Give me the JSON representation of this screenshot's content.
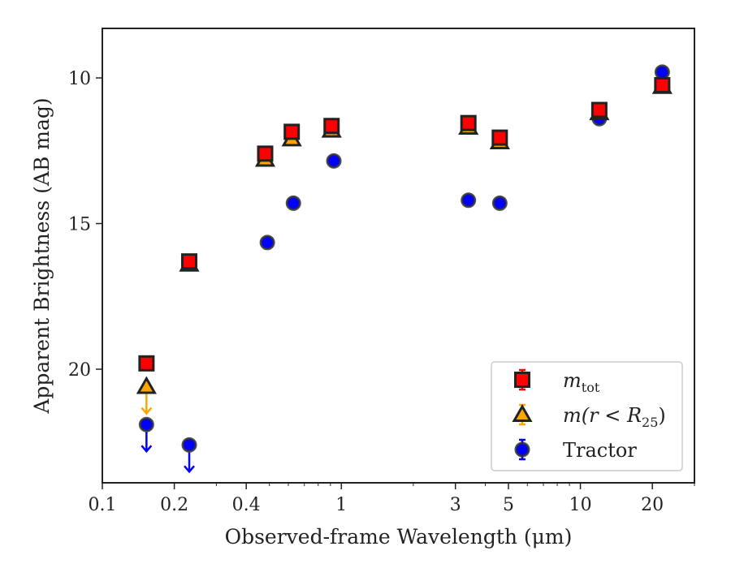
{
  "chart_data": {
    "type": "scatter",
    "xlabel": "Observed-frame Wavelength (μm)",
    "ylabel": "Apparent Brightness (AB mag)",
    "xscale": "log",
    "xlim": [
      0.1,
      30
    ],
    "ylim": [
      23.9,
      8.3
    ],
    "y_inverted": true,
    "x_ticks": [
      0.1,
      0.2,
      0.4,
      1,
      3,
      5,
      10,
      20
    ],
    "x_tick_labels": [
      "0.1",
      "0.2",
      "0.4",
      "1",
      "3",
      "5",
      "10",
      "20"
    ],
    "y_ticks": [
      10,
      15,
      20
    ],
    "y_tick_labels": [
      "10",
      "15",
      "20"
    ],
    "grid": false,
    "legend_position": "lower-right",
    "series": [
      {
        "name": "m_tot",
        "legend_label": {
          "base": "m",
          "sub": "tot"
        },
        "marker": "square",
        "color": "#ff0000",
        "points": [
          {
            "x": 0.153,
            "y": 19.8
          },
          {
            "x": 0.231,
            "y": 16.3
          },
          {
            "x": 0.48,
            "y": 12.6
          },
          {
            "x": 0.62,
            "y": 11.85
          },
          {
            "x": 0.91,
            "y": 11.65
          },
          {
            "x": 3.4,
            "y": 11.55
          },
          {
            "x": 4.6,
            "y": 12.05
          },
          {
            "x": 12.0,
            "y": 11.1
          },
          {
            "x": 22.0,
            "y": 10.25
          }
        ]
      },
      {
        "name": "m(r < R_25)",
        "legend_label": {
          "base": "m(r < R",
          "sub": "25",
          "tail": ")"
        },
        "marker": "triangle",
        "color": "#ffa500",
        "points": [
          {
            "x": 0.153,
            "y": 20.6,
            "upper_limit": true
          },
          {
            "x": 0.231,
            "y": 16.4
          },
          {
            "x": 0.48,
            "y": 12.8
          },
          {
            "x": 0.62,
            "y": 12.1
          },
          {
            "x": 0.91,
            "y": 11.8
          },
          {
            "x": 3.4,
            "y": 11.7
          },
          {
            "x": 4.6,
            "y": 12.2
          },
          {
            "x": 12.0,
            "y": 11.2
          },
          {
            "x": 22.0,
            "y": 10.3
          }
        ]
      },
      {
        "name": "Tractor",
        "legend_label": {
          "base": "Tractor"
        },
        "marker": "circle",
        "color": "#0000ff",
        "points": [
          {
            "x": 0.153,
            "y": 21.9,
            "upper_limit": true
          },
          {
            "x": 0.231,
            "y": 22.6,
            "upper_limit": true
          },
          {
            "x": 0.49,
            "y": 15.65
          },
          {
            "x": 0.63,
            "y": 14.3
          },
          {
            "x": 0.93,
            "y": 12.85
          },
          {
            "x": 3.4,
            "y": 14.2
          },
          {
            "x": 4.6,
            "y": 14.3
          },
          {
            "x": 12.0,
            "y": 11.4
          },
          {
            "x": 22.0,
            "y": 9.8
          }
        ]
      }
    ]
  }
}
